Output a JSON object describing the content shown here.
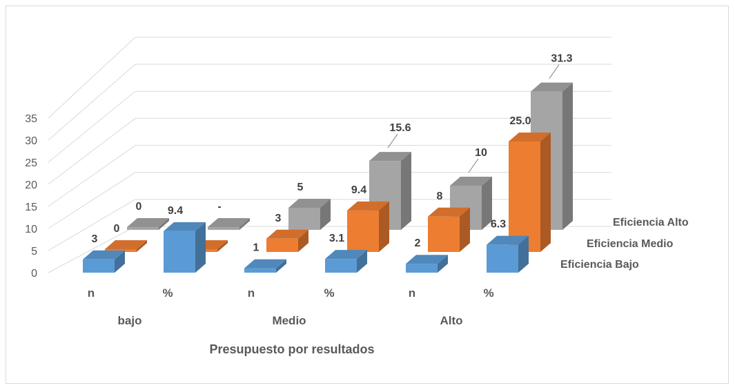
{
  "chart_data": {
    "type": "bar",
    "categories": [
      "n",
      "%",
      "n",
      "%",
      "n",
      "%"
    ],
    "groups": [
      "bajo",
      "Medio",
      "Alto"
    ],
    "xlabel": "Presupuesto por resultados",
    "ylim": [
      0,
      35
    ],
    "yticks": [
      "0",
      "5",
      "10",
      "15",
      "20",
      "25",
      "30",
      "35"
    ],
    "grid": true,
    "series": [
      {
        "name": "Eficiencia Bajo",
        "values": [
          3,
          9.4,
          1,
          3.1,
          2,
          6.3
        ],
        "labels": [
          "3",
          "9.4",
          "1",
          "3.1",
          "2",
          "6.3"
        ],
        "color": "#5b9bd5"
      },
      {
        "name": "Eficiencia Medio",
        "values": [
          0,
          0,
          3,
          9.4,
          8,
          25.0
        ],
        "labels": [
          "0",
          "-",
          "3",
          "9.4",
          "8",
          "25.0"
        ],
        "color": "#ed7d31"
      },
      {
        "name": "Eficiencia Alto",
        "values": [
          0,
          0,
          5,
          15.6,
          10,
          31.3
        ],
        "labels": [
          "0",
          "-",
          "5",
          "15.6",
          "10",
          "31.3"
        ],
        "color": "#a5a5a5"
      }
    ]
  }
}
